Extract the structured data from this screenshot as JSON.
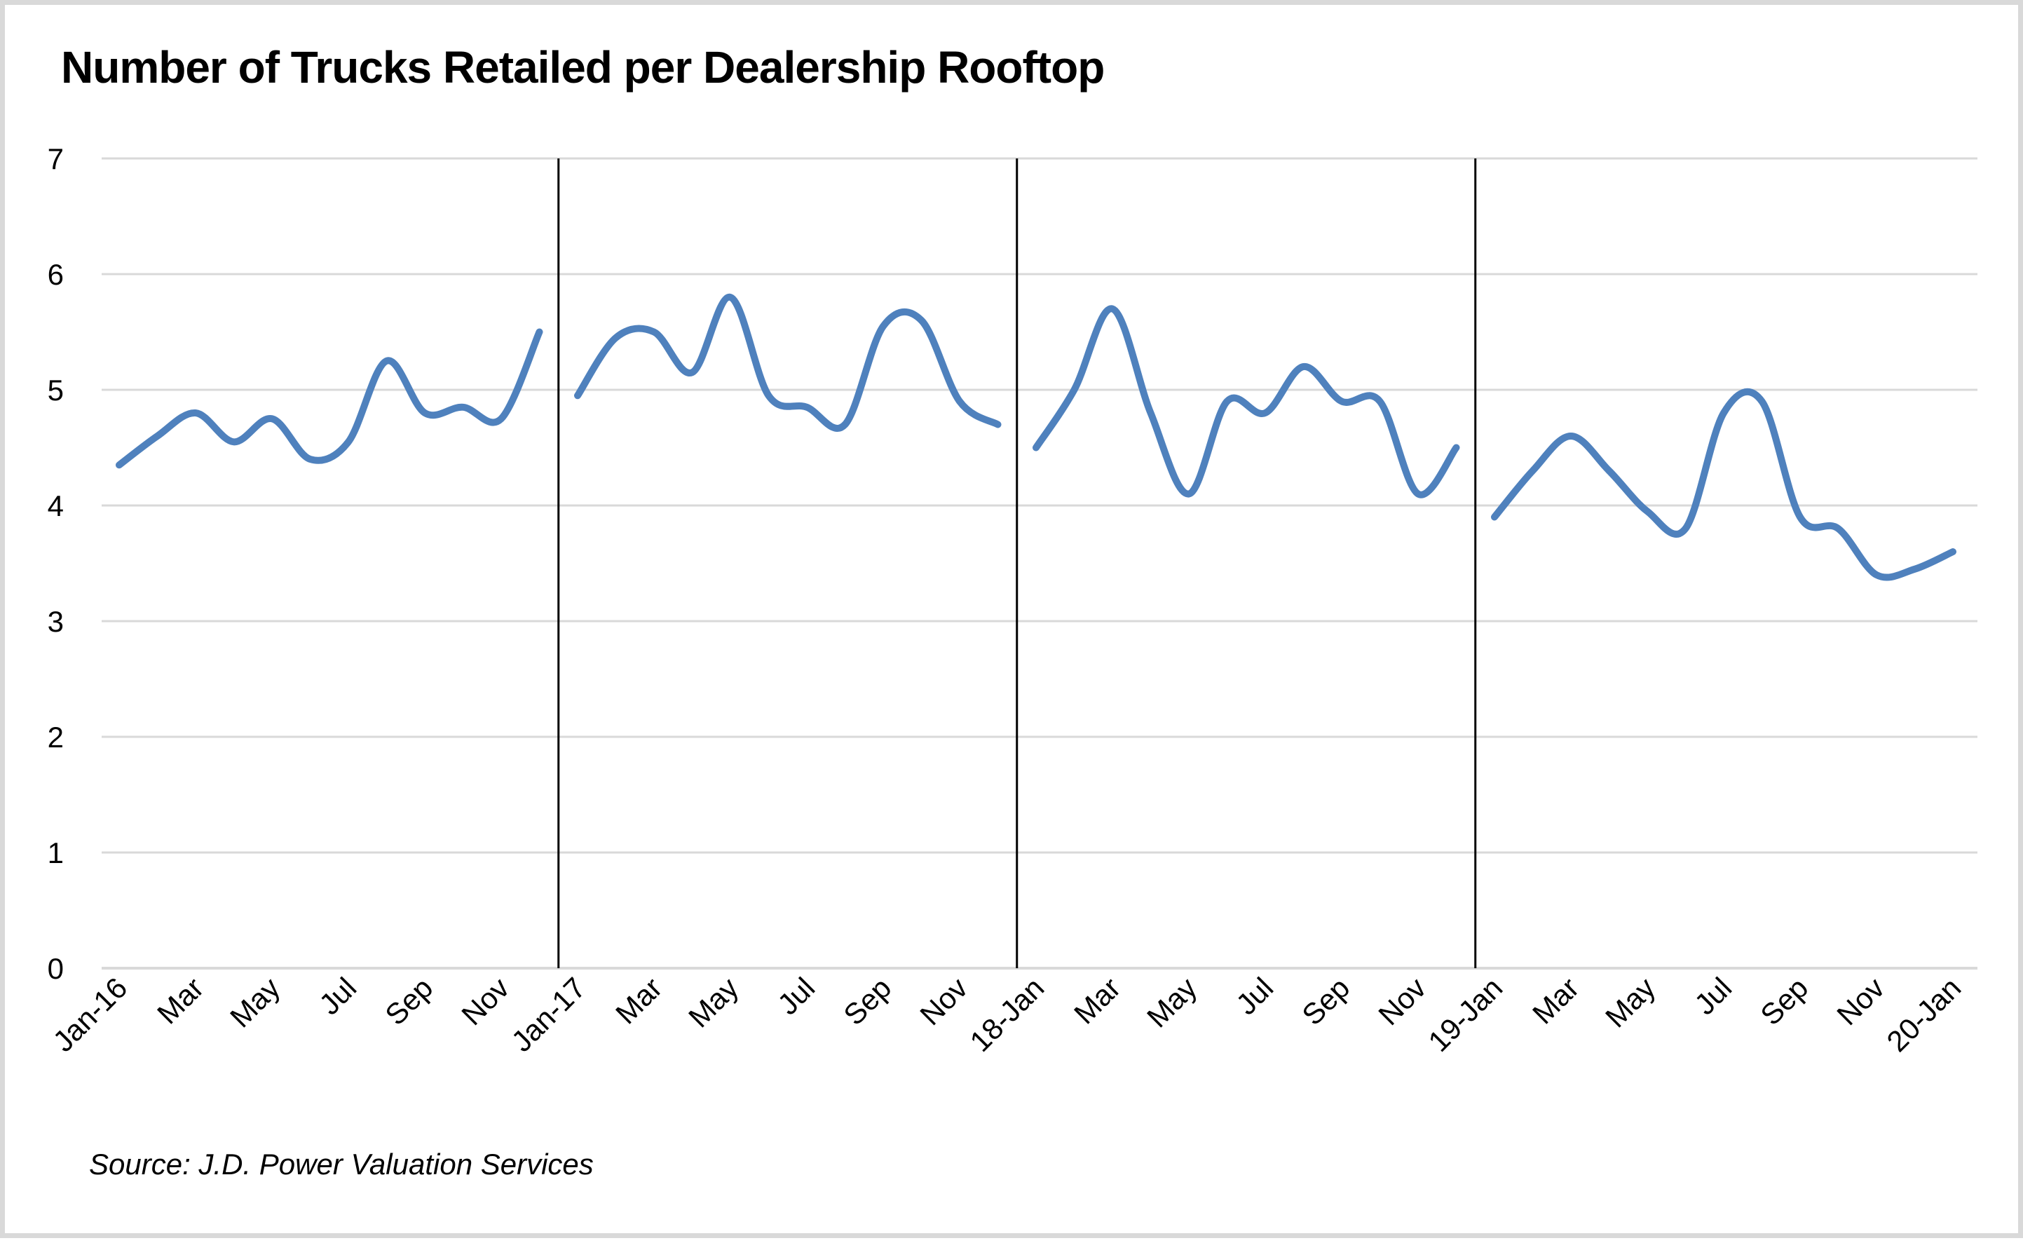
{
  "chart_data": {
    "type": "line",
    "title": "Number of Trucks Retailed per Dealership Rooftop",
    "source": "Source: J.D. Power Valuation Services",
    "xlabel": "",
    "ylabel": "",
    "ylim": [
      0,
      7
    ],
    "yticks": [
      "0",
      "1",
      "2",
      "3",
      "4",
      "5",
      "6",
      "7"
    ],
    "grid": true,
    "line_color": "#4f81bd",
    "grid_color": "#d9d9d9",
    "divider_color": "#000000",
    "categories": [
      "Jan-16",
      "Mar",
      "May",
      "Jul",
      "Sep",
      "Nov",
      "Jan-17",
      "Mar",
      "May",
      "Jul",
      "Sep",
      "Nov",
      "18-Jan",
      "Mar",
      "May",
      "Jul",
      "Sep",
      "Nov",
      "19-Jan",
      "Mar",
      "May",
      "Jul",
      "Sep",
      "Nov",
      "20-Jan"
    ],
    "dividers_after_month_index": [
      11,
      23,
      35
    ],
    "segments": [
      {
        "year": "2016",
        "start_month_index": 0,
        "values": [
          4.35,
          4.6,
          4.8,
          4.55,
          4.75,
          4.4,
          4.55,
          5.25,
          4.8,
          4.85,
          4.75,
          5.5
        ]
      },
      {
        "year": "2017",
        "start_month_index": 12,
        "values": [
          4.95,
          5.45,
          5.5,
          5.15,
          5.8,
          4.95,
          4.85,
          4.7,
          5.55,
          5.6,
          4.9,
          4.7
        ]
      },
      {
        "year": "2018",
        "start_month_index": 24,
        "values": [
          4.5,
          5.0,
          5.7,
          4.8,
          4.1,
          4.9,
          4.8,
          5.2,
          4.9,
          4.9,
          4.1,
          4.5
        ]
      },
      {
        "year": "2019",
        "start_month_index": 36,
        "values": [
          3.9,
          4.3,
          4.6,
          4.3,
          3.95,
          3.8,
          4.8,
          4.9,
          3.9,
          3.8,
          3.4,
          3.45,
          3.6
        ]
      }
    ]
  }
}
